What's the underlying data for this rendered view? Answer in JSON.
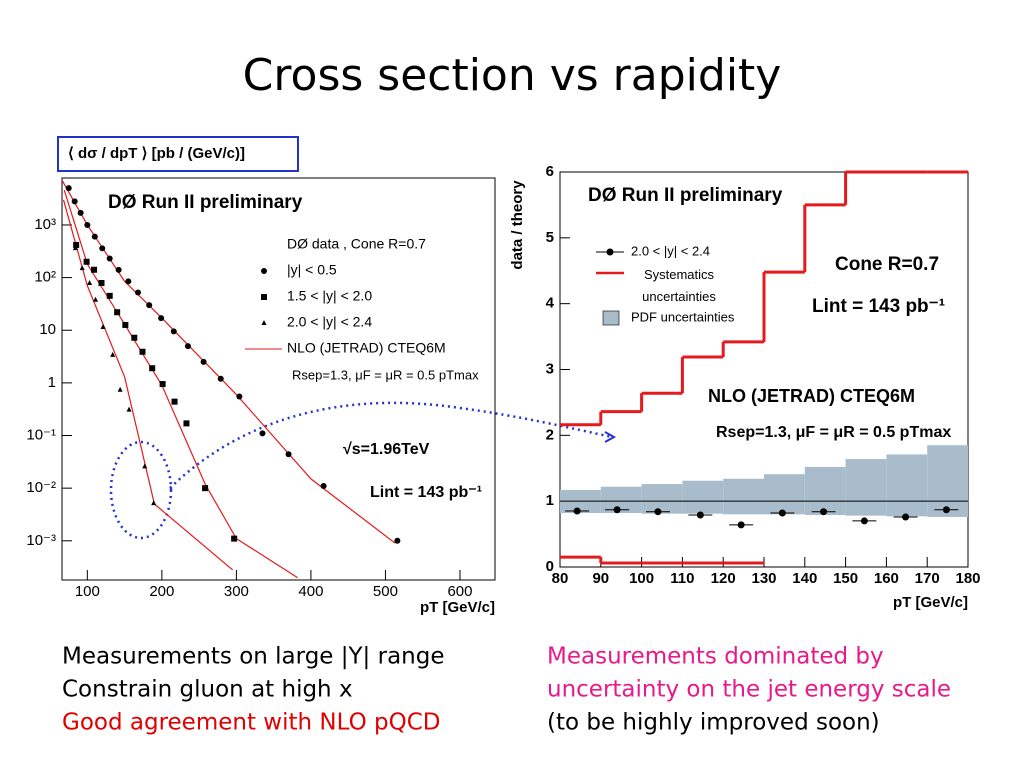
{
  "title": "Cross section vs rapidity",
  "notes": {
    "left": [
      "Measurements on large |Y| range",
      "Constrain gluon at high x",
      "Good agreement with NLO pQCD"
    ],
    "right": [
      "Measurements dominated by",
      "uncertainty on the jet energy scale",
      "(to be highly improved soon)"
    ]
  },
  "chart_data": [
    {
      "type": "scatter",
      "log_y": true,
      "ylabel": "⟨ dσ / dpT ⟩  [pb / (GeV/c)]",
      "xlabel": "pT [GeV/c]",
      "xlim": [
        66,
        647
      ],
      "ylim": [
        0.00018,
        7800
      ],
      "xticks": [
        100,
        200,
        300,
        400,
        500,
        600
      ],
      "yticks": [
        {
          "value": 1000,
          "label": "10³"
        },
        {
          "value": 100,
          "label": "10²"
        },
        10,
        1,
        {
          "value": 0.1,
          "label": "10⁻¹"
        },
        {
          "value": 0.01,
          "label": "10⁻²"
        },
        {
          "value": 0.001,
          "label": "10⁻³"
        }
      ],
      "annotations": [
        "DØ Run II preliminary",
        "√s=1.96TeV",
        "Lint = 143 pb⁻¹"
      ],
      "legend_title": "DØ data ,  Cone R=0.7",
      "series": [
        {
          "name": "|y| < 0.5",
          "marker": "circle",
          "color": "#000000",
          "x": [
            75,
            83,
            91,
            100,
            110,
            120,
            130,
            142,
            155,
            168,
            183,
            199,
            216,
            235,
            256,
            279,
            304,
            335,
            370,
            417,
            516
          ],
          "values": [
            5000,
            2800,
            1700,
            1000,
            600,
            360,
            230,
            140,
            85,
            52,
            30,
            17,
            9.5,
            5.0,
            2.5,
            1.2,
            0.55,
            0.11,
            0.044,
            0.011,
            0.001
          ]
        },
        {
          "name": "1.5 < |y| < 2.0",
          "marker": "square",
          "color": "#000000",
          "x": [
            85,
            99,
            109,
            119,
            130,
            140,
            151,
            163,
            174,
            187,
            201,
            217,
            233,
            258,
            297
          ],
          "values": [
            417,
            200,
            141,
            79,
            45,
            22,
            12.6,
            7.2,
            3.9,
            1.9,
            0.95,
            0.44,
            0.17,
            0.01,
            0.0011
          ]
        },
        {
          "name": "2.0 < |y| < 2.4",
          "marker": "triangle",
          "color": "#000000",
          "x": [
            84,
            93,
            103,
            111,
            121,
            134,
            144,
            156,
            177,
            189
          ],
          "values": [
            363,
            151,
            79,
            38,
            11.5,
            3.4,
            0.74,
            0.31,
            0.026,
            0.0052
          ]
        }
      ],
      "fits": {
        "name": "NLO (JETRAD) CTEQ6M",
        "caption": "Rsep=1.3,  μF = μR = 0.5 pTmax",
        "color": "#e41a1c",
        "curves": [
          {
            "x": [
              66,
              100,
              150,
              200,
              300,
              400,
              513
            ],
            "values": [
              7100,
              1000,
              85,
              17,
              0.6,
              0.015,
              0.0009
            ]
          },
          {
            "x": [
              69,
              100,
              150,
              200,
              258,
              300,
              382
            ],
            "values": [
              4600,
              180,
              13,
              0.9,
              0.012,
              0.0011,
              0.0002
            ]
          },
          {
            "x": [
              68,
              100,
              150,
              190,
              295
            ],
            "values": [
              3000,
              70,
              1.3,
              0.005,
              0.00028
            ]
          }
        ]
      }
    },
    {
      "type": "step",
      "ylabel": "data / theory",
      "xlabel": "pT [GeV/c]",
      "xlim": [
        80,
        180
      ],
      "ylim": [
        0,
        6
      ],
      "xticks": [
        80,
        90,
        100,
        110,
        120,
        130,
        140,
        150,
        160,
        170,
        180
      ],
      "yticks": [
        0,
        1,
        2,
        3,
        4,
        5,
        6
      ],
      "annotations": [
        "DØ Run II preliminary",
        "Cone R=0.7",
        "Lint = 143 pb⁻¹",
        "NLO (JETRAD) CTEQ6M",
        "Rsep=1.3,  μF = μR = 0.5 pTmax"
      ],
      "reference": 1,
      "bins": [
        80,
        90,
        100,
        110,
        120,
        130,
        140,
        150,
        160,
        170,
        180
      ],
      "series": [
        {
          "name": "2.0 < |y| < 2.4",
          "type": "points",
          "color": "#000000",
          "x": [
            84.2,
            94,
            104,
            114.4,
            124.4,
            134.5,
            144.6,
            154.6,
            164.7,
            174.7
          ],
          "values": [
            0.85,
            0.87,
            0.84,
            0.79,
            0.64,
            0.82,
            0.84,
            0.7,
            0.76,
            0.87
          ]
        },
        {
          "name": "Systematics uncertainties",
          "type": "step",
          "color": "#e41a1c",
          "upper": [
            2.16,
            2.36,
            2.64,
            3.19,
            3.42,
            4.48,
            5.5,
            6,
            6,
            6
          ],
          "lower": [
            0.15,
            0.06,
            0.06,
            0.06,
            0.06,
            null,
            null,
            null,
            null,
            null
          ]
        },
        {
          "name": "PDF uncertainties",
          "type": "band",
          "color": "#a9bccb",
          "upper": [
            1.17,
            1.22,
            1.26,
            1.31,
            1.34,
            1.41,
            1.52,
            1.64,
            1.71,
            1.85
          ],
          "lower": [
            0.82,
            0.82,
            0.81,
            0.81,
            0.8,
            0.8,
            0.79,
            0.78,
            0.77,
            0.76
          ]
        }
      ]
    }
  ]
}
